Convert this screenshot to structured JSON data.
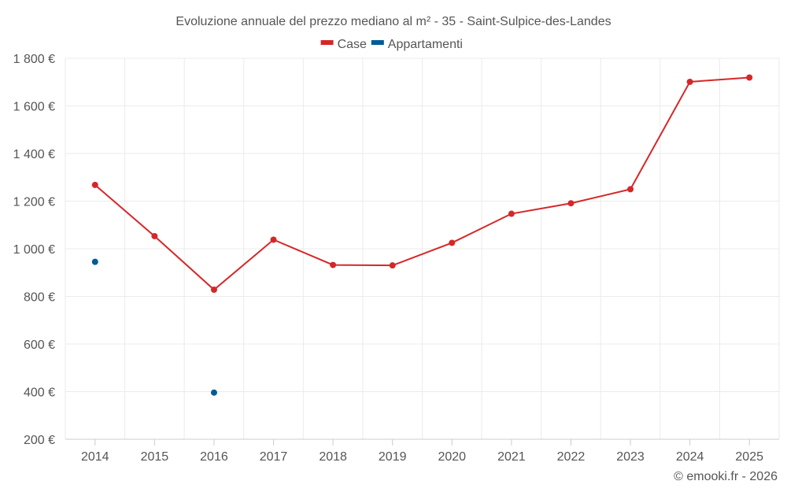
{
  "chart_data": {
    "type": "line",
    "title": "Evoluzione annuale del prezzo mediano al m² - 35 - Saint-Sulpice-des-Landes",
    "categories": [
      "2014",
      "2015",
      "2016",
      "2017",
      "2018",
      "2019",
      "2020",
      "2021",
      "2022",
      "2023",
      "2024",
      "2025"
    ],
    "series": [
      {
        "name": "Case",
        "color": "#d62728",
        "values": [
          1268,
          1053,
          828,
          1038,
          932,
          930,
          1025,
          1147,
          1191,
          1250,
          1701,
          1719
        ]
      },
      {
        "name": "Appartamenti",
        "color": "#005b96",
        "values": [
          945,
          null,
          396,
          null,
          null,
          null,
          null,
          null,
          null,
          null,
          null,
          null
        ]
      }
    ],
    "ylim": [
      200,
      1800
    ],
    "yticks": [
      200,
      400,
      600,
      800,
      1000,
      1200,
      1400,
      1600,
      1800
    ],
    "ytick_labels": [
      "200 €",
      "400 €",
      "600 €",
      "800 €",
      "1 000 €",
      "1 200 €",
      "1 400 €",
      "1 600 €",
      "1 800 €"
    ],
    "xlabel": "",
    "ylabel": "",
    "grid": true,
    "legend_position": "top-center"
  },
  "credit": "© emooki.fr - 2026"
}
